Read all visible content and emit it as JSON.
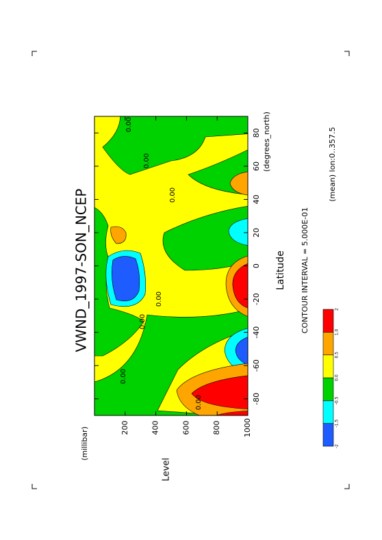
{
  "chart_data": {
    "type": "contour",
    "title": "VWND_1997-SON_NCEP",
    "x_label": "Latitude",
    "x_units": "(degrees_north)",
    "y_label": "Level",
    "y_units": "(millibar)",
    "xlim": [
      -90,
      90
    ],
    "xticks": [
      -80,
      -60,
      -40,
      -20,
      0,
      20,
      40,
      60,
      80
    ],
    "ylim": [
      0,
      1000
    ],
    "yticks": [
      200,
      400,
      600,
      800,
      1000
    ],
    "y_inverted": true,
    "levels": [
      -2,
      -1.5,
      -0.5,
      {
        "value": 0,
        "label": "0.0"
      },
      0.5,
      {
        "value": 1,
        "label": "1.0"
      },
      2
    ],
    "colors": [
      "#1e5cff",
      "#00ffff",
      "#00d200",
      "#ffff00",
      "#ffa500",
      "#ff0000"
    ],
    "contour_labels": [
      {
        "value": 0,
        "label": "0.00"
      },
      {
        "value": 0,
        "label": "0.00"
      },
      {
        "value": 0,
        "label": "0.00"
      },
      {
        "value": 0,
        "label": "0.00"
      },
      {
        "value": 0,
        "label": "0.00"
      },
      {
        "value": 0,
        "label": "0.00"
      },
      {
        "value": 0,
        "label": "0.00"
      }
    ],
    "contour_interval": "CONTOUR INTERVAL = 5.000E-01",
    "note": "(mean) lon:0..357.5"
  }
}
